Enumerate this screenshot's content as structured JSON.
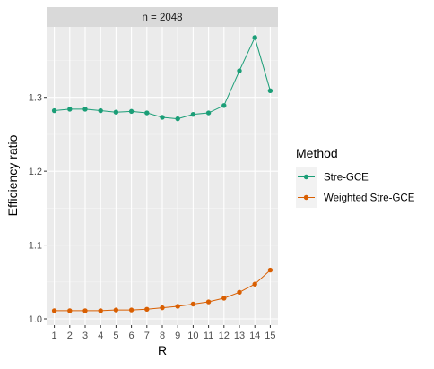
{
  "chart_data": {
    "type": "line",
    "facet_label": "n = 2048",
    "xlabel": "R",
    "ylabel": "Efficiency ratio",
    "x": [
      1,
      2,
      3,
      4,
      5,
      6,
      7,
      8,
      9,
      10,
      11,
      12,
      13,
      14,
      15
    ],
    "xlim": [
      0.5,
      15.5
    ],
    "ylim": [
      0.9915,
      1.3955
    ],
    "yticks": [
      1.0,
      1.1,
      1.2,
      1.3
    ],
    "ytick_labels": [
      "1.0",
      "1.1",
      "1.2",
      "1.3"
    ],
    "grid": true,
    "legend": {
      "title": "Method",
      "position": "right"
    },
    "series": [
      {
        "name": "Stre-GCE",
        "color": "#1b9e77",
        "values": [
          1.282,
          1.284,
          1.284,
          1.282,
          1.28,
          1.281,
          1.279,
          1.273,
          1.271,
          1.277,
          1.279,
          1.289,
          1.336,
          1.381,
          1.309
        ]
      },
      {
        "name": "Weighted Stre-GCE",
        "color": "#d95f02",
        "values": [
          1.011,
          1.011,
          1.011,
          1.011,
          1.012,
          1.012,
          1.013,
          1.015,
          1.017,
          1.02,
          1.023,
          1.028,
          1.036,
          1.047,
          1.066
        ]
      }
    ]
  }
}
